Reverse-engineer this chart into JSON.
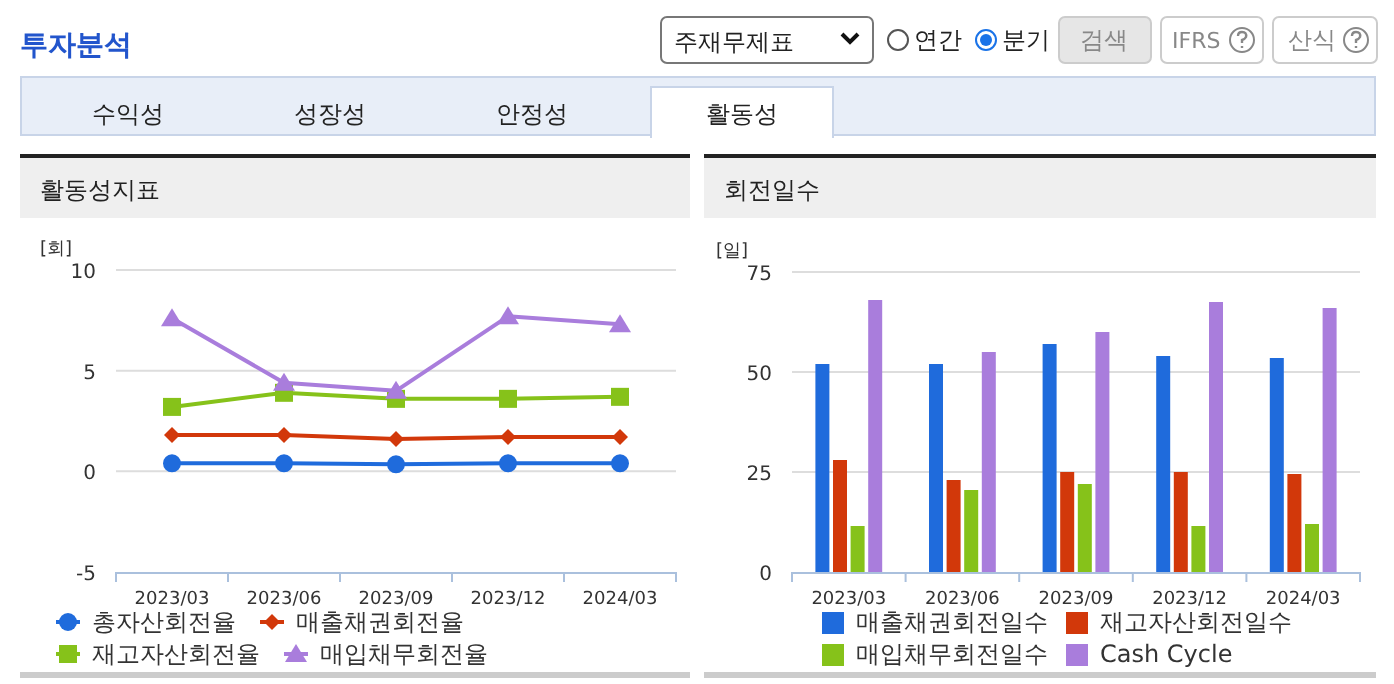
{
  "chart_data": [
    {
      "type": "other",
      "annotations": [
        "투자분석",
        "주재무제표",
        "연간",
        "분기",
        "검색",
        "IFRS",
        "산식",
        "수익성",
        "성장성",
        "안정성",
        "활동성"
      ]
    },
    {
      "type": "line",
      "title": "활동성지표",
      "ylabel": "[회]",
      "categories": [
        "2023/03",
        "2023/06",
        "2023/09",
        "2023/12",
        "2024/03"
      ],
      "ylim": [
        -5,
        10
      ],
      "yticks": [
        -5,
        0,
        5,
        10
      ],
      "grid": "y",
      "legend": "bottom",
      "series": [
        {
          "name": "총자산회전율",
          "color": "#1f6bdc",
          "marker": "circle",
          "values": [
            0.4,
            0.4,
            0.35,
            0.4,
            0.4
          ]
        },
        {
          "name": "매출채권회전율",
          "color": "#d2380a",
          "marker": "diamond",
          "values": [
            1.8,
            1.8,
            1.6,
            1.7,
            1.7
          ]
        },
        {
          "name": "재고자산회전율",
          "color": "#86c21a",
          "marker": "square",
          "values": [
            3.2,
            3.9,
            3.6,
            3.6,
            3.7
          ]
        },
        {
          "name": "매입채무회전율",
          "color": "#a97ddc",
          "marker": "triangle",
          "values": [
            7.6,
            4.4,
            4.0,
            7.7,
            7.3
          ]
        }
      ]
    },
    {
      "type": "bar",
      "title": "회전일수",
      "ylabel": "[일]",
      "categories": [
        "2023/03",
        "2023/06",
        "2023/09",
        "2023/12",
        "2024/03"
      ],
      "ylim": [
        0,
        75
      ],
      "yticks": [
        0,
        25,
        50,
        75
      ],
      "grid": "y",
      "legend": "bottom",
      "series": [
        {
          "name": "매출채권회전일수",
          "color": "#1f6bdc",
          "values": [
            52,
            52,
            57,
            54,
            53.5
          ]
        },
        {
          "name": "재고자산회전일수",
          "color": "#d2380a",
          "values": [
            28,
            23,
            25,
            25,
            24.5
          ]
        },
        {
          "name": "매입채무회전일수",
          "color": "#86c21a",
          "values": [
            11.5,
            20.5,
            22,
            11.5,
            12
          ]
        },
        {
          "name": "Cash Cycle",
          "color": "#a97ddc",
          "values": [
            68,
            55,
            60,
            67.5,
            66
          ]
        }
      ]
    }
  ]
}
